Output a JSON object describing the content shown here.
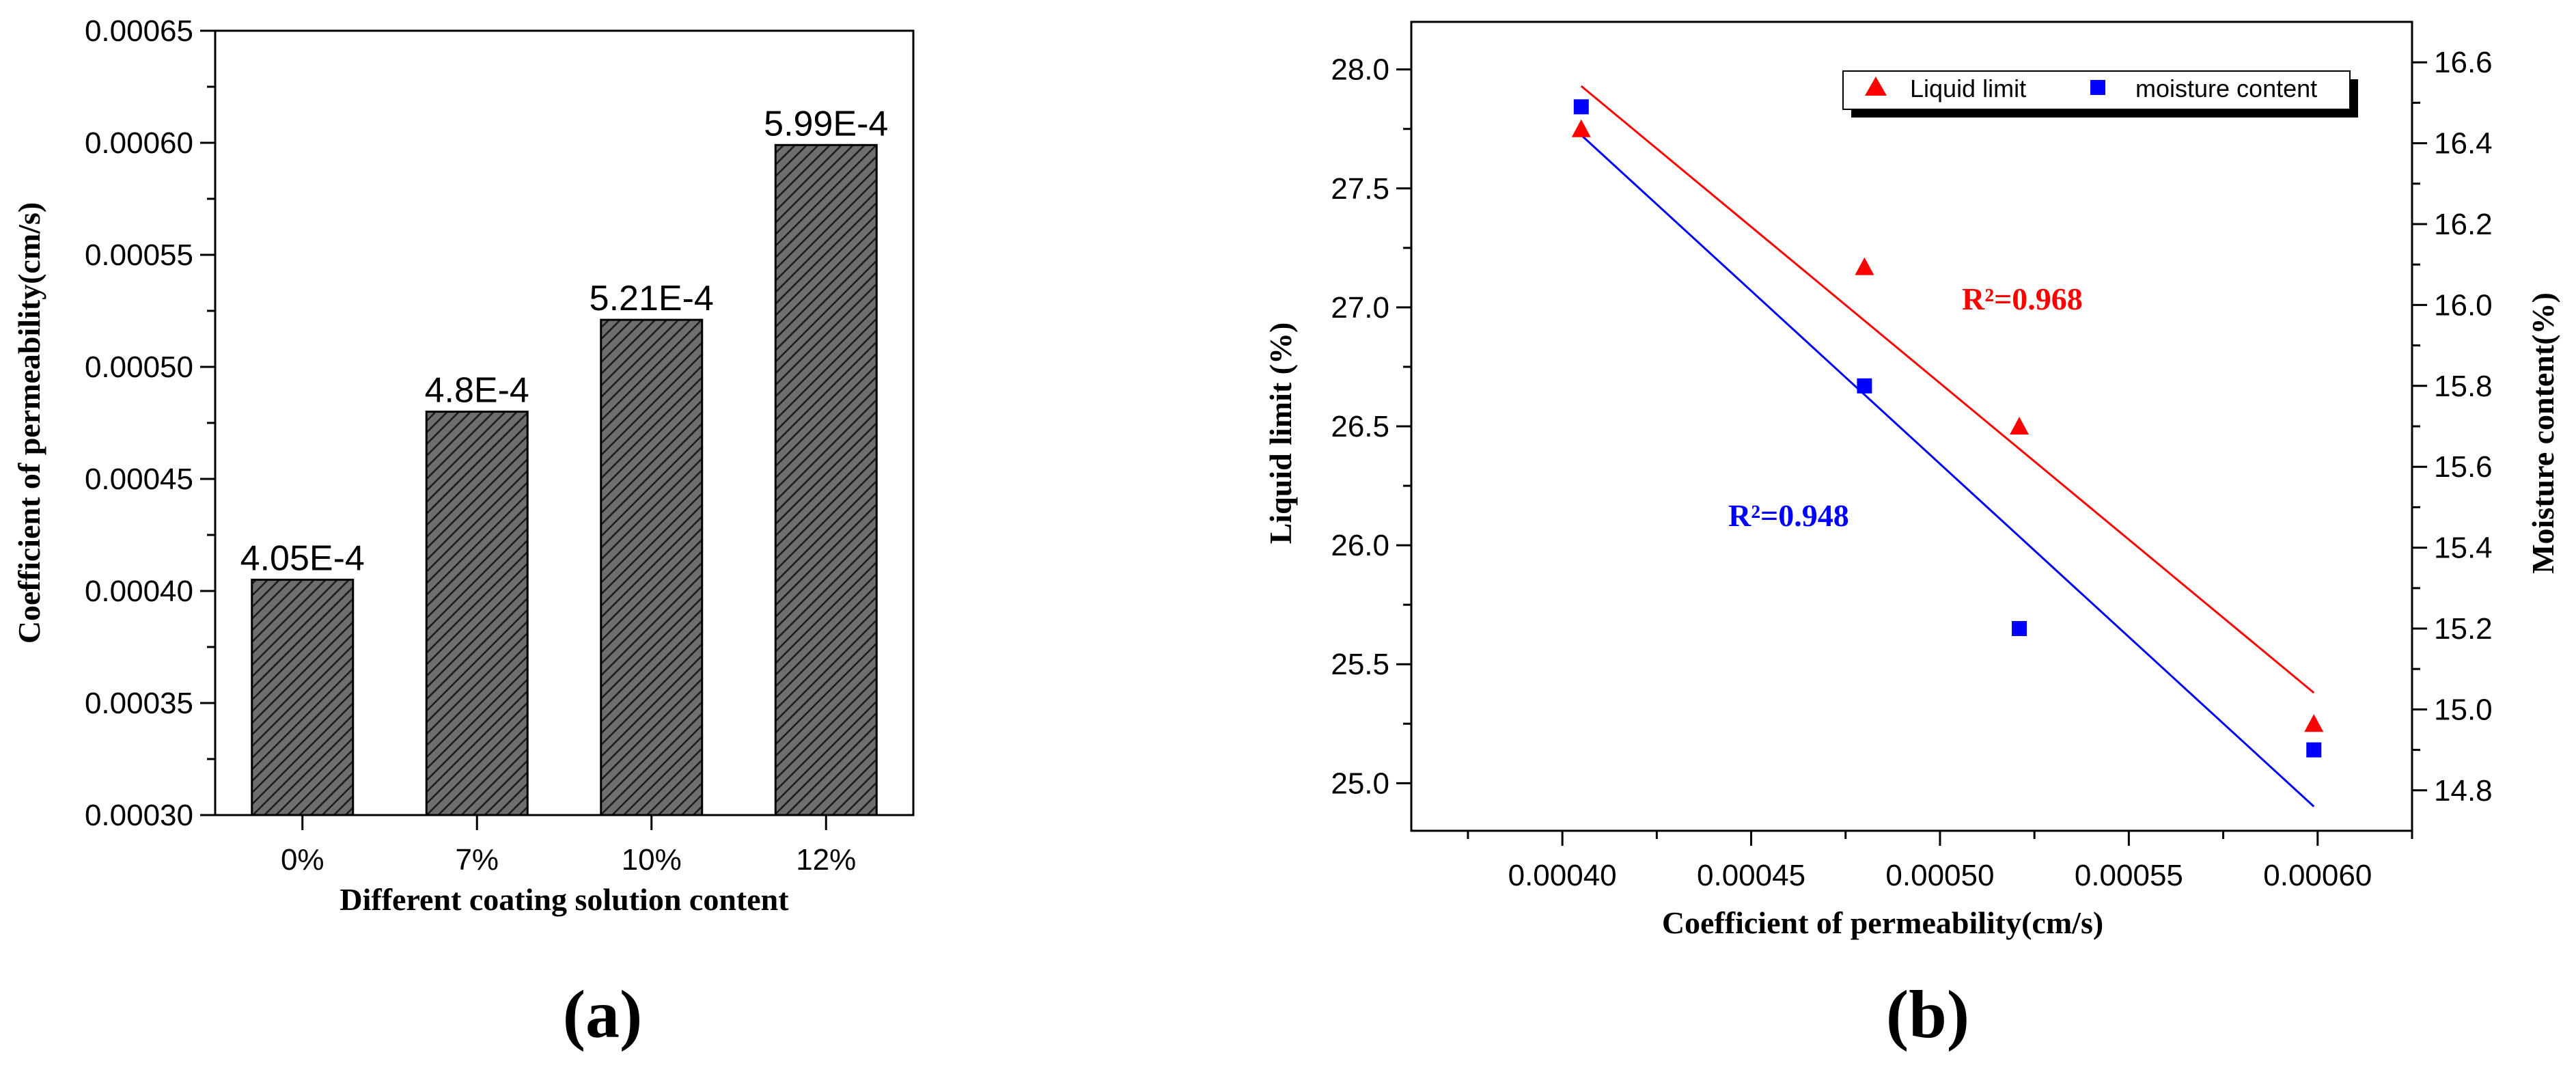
{
  "chart_data": [
    {
      "type": "bar",
      "panel_label": "(a)",
      "categories": [
        "0%",
        "7%",
        "10%",
        "12%"
      ],
      "values": [
        0.000405,
        0.00048,
        0.000521,
        0.000599
      ],
      "data_labels": [
        "4.05E-4",
        "4.8E-4",
        "5.21E-4",
        "5.99E-4"
      ],
      "xlabel": "Different coating solution content",
      "ylabel": "Coefficient of permeability(cm/s)",
      "ylim": [
        0.0003,
        0.00065
      ],
      "yticks": [
        0.0003,
        0.00035,
        0.0004,
        0.00045,
        0.0005,
        0.00055,
        0.0006,
        0.00065
      ],
      "ytick_labels": [
        "0.00030",
        "0.00035",
        "0.00040",
        "0.00045",
        "0.00050",
        "0.00055",
        "0.00060",
        "0.00065"
      ],
      "bar_fill": "hatched dark gray",
      "grid": false
    },
    {
      "type": "scatter",
      "panel_label": "(b)",
      "xlabel": "Coefficient of permeability(cm/s)",
      "ylabel_left": "Liquid limit (%)",
      "ylabel_right": "Moisture content(%)",
      "xlim": [
        0.00036,
        0.000625
      ],
      "xticks": [
        0.0004,
        0.00045,
        0.0005,
        0.00055,
        0.0006
      ],
      "xtick_labels": [
        "0.00040",
        "0.00045",
        "0.00050",
        "0.00055",
        "0.00060"
      ],
      "ylim_left": [
        24.8,
        28.2
      ],
      "yticks_left": [
        25.0,
        25.5,
        26.0,
        26.5,
        27.0,
        27.5,
        28.0
      ],
      "ytick_labels_left": [
        "25.0",
        "25.5",
        "26.0",
        "26.5",
        "27.0",
        "27.5",
        "28.0"
      ],
      "ylim_right": [
        14.7,
        16.7
      ],
      "yticks_right": [
        14.8,
        15.0,
        15.2,
        15.4,
        15.6,
        15.8,
        16.0,
        16.2,
        16.4,
        16.6
      ],
      "ytick_labels_right": [
        "14.8",
        "15.0",
        "15.2",
        "15.4",
        "15.6",
        "15.8",
        "16.0",
        "16.2",
        "16.4",
        "16.6"
      ],
      "legend_position": "top-right",
      "grid": false,
      "series": [
        {
          "name": "Liquid limit",
          "axis": "left",
          "marker": "triangle",
          "color": "#ff0000",
          "x": [
            0.000405,
            0.00048,
            0.000521,
            0.000599
          ],
          "y": [
            27.75,
            27.17,
            26.5,
            25.25
          ],
          "fit_line": {
            "x": [
              0.000405,
              0.000599
            ],
            "y": [
              27.93,
              25.38
            ]
          },
          "r2_label": "R²=0.968"
        },
        {
          "name": "moisture content",
          "axis": "right",
          "marker": "square",
          "color": "#0000ff",
          "x": [
            0.000405,
            0.00048,
            0.000521,
            0.000599
          ],
          "y": [
            16.49,
            15.8,
            15.2,
            14.9
          ],
          "fit_line": {
            "x": [
              0.000405,
              0.000599
            ],
            "y": [
              16.42,
              14.76
            ]
          },
          "r2_label": "R²=0.948"
        }
      ]
    }
  ]
}
